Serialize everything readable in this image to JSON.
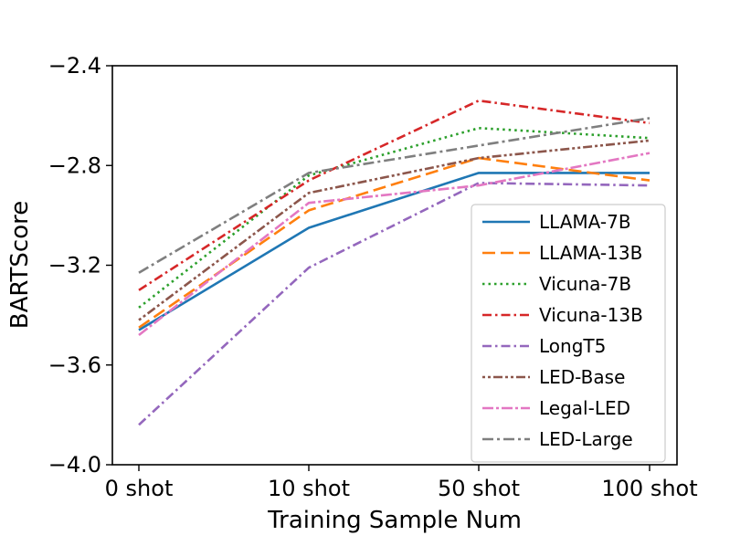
{
  "chart_data": {
    "type": "line",
    "title": "",
    "xlabel": "Training Sample Num",
    "ylabel": "BARTScore",
    "categories": [
      "0 shot",
      "10 shot",
      "50 shot",
      "100 shot"
    ],
    "ylim": [
      -4.0,
      -2.4
    ],
    "yticks": [
      -4.0,
      -3.6,
      -3.2,
      -2.8,
      -2.4
    ],
    "ytick_labels": [
      "−4.0",
      "−3.6",
      "−3.2",
      "−2.8",
      "−2.4"
    ],
    "grid": false,
    "legend_position": "lower-right",
    "series": [
      {
        "name": "LLAMA-7B",
        "color": "#1f77b4",
        "style": "solid",
        "values": [
          -3.46,
          -3.05,
          -2.83,
          -2.83
        ]
      },
      {
        "name": "LLAMA-13B",
        "color": "#ff7f0e",
        "style": "dashed",
        "values": [
          -3.45,
          -2.98,
          -2.77,
          -2.86
        ]
      },
      {
        "name": "Vicuna-7B",
        "color": "#2ca02c",
        "style": "dotted",
        "values": [
          -3.37,
          -2.84,
          -2.65,
          -2.69
        ]
      },
      {
        "name": "Vicuna-13B",
        "color": "#d62728",
        "style": "dashdot",
        "values": [
          -3.3,
          -2.86,
          -2.54,
          -2.63
        ]
      },
      {
        "name": "LongT5",
        "color": "#9467bd",
        "style": "dashdot",
        "values": [
          -3.84,
          -3.21,
          -2.87,
          -2.88
        ]
      },
      {
        "name": "LED-Base",
        "color": "#8c564b",
        "style": "dashdot2",
        "values": [
          -3.42,
          -2.91,
          -2.77,
          -2.7
        ]
      },
      {
        "name": "Legal-LED",
        "color": "#e377c2",
        "style": "dashdot3",
        "values": [
          -3.48,
          -2.95,
          -2.88,
          -2.75
        ]
      },
      {
        "name": "LED-Large",
        "color": "#7f7f7f",
        "style": "dashdot4",
        "values": [
          -3.23,
          -2.83,
          -2.72,
          -2.61
        ]
      }
    ]
  }
}
